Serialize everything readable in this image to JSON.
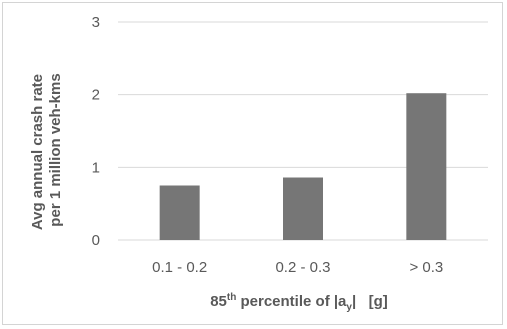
{
  "chart_data": {
    "type": "bar",
    "categories": [
      "0.1 - 0.2",
      "0.2 - 0.3",
      "> 0.3"
    ],
    "values": [
      0.75,
      0.86,
      2.02
    ],
    "ylim": [
      0,
      3
    ],
    "yticks": [
      0,
      1,
      2,
      3
    ],
    "ylabel_line1": "Avg annual crash rate",
    "ylabel_line2": "per 1 million veh-kms",
    "xlabel": {
      "prefix": "85",
      "superscript": "th",
      "middle": " percentile of |a",
      "subscript": "y",
      "suffix": "|   [g]"
    },
    "bar_color": "#767676",
    "grid": true
  }
}
